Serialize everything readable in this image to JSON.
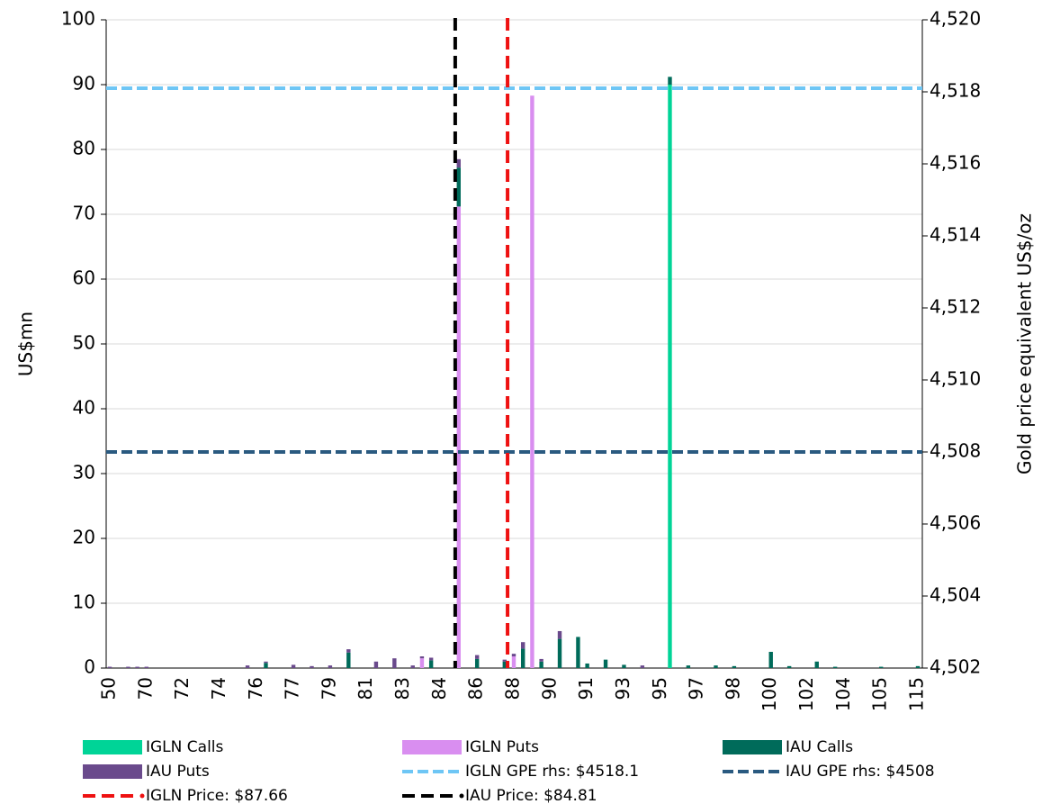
{
  "chart_data": {
    "type": "bar",
    "ylabel": "US$mn",
    "y2label": "Gold price equivalent US$/oz",
    "ylim": [
      0,
      100
    ],
    "yticks": [
      0,
      10,
      20,
      30,
      40,
      50,
      60,
      70,
      80,
      90,
      100
    ],
    "y2lim": [
      4502,
      4520
    ],
    "y2ticks": [
      {
        "value": 4502,
        "label": "4,502"
      },
      {
        "value": 4504,
        "label": "4,504"
      },
      {
        "value": 4506,
        "label": "4,506"
      },
      {
        "value": 4508,
        "label": "4,508"
      },
      {
        "value": 4510,
        "label": "4,510"
      },
      {
        "value": 4512,
        "label": "4,512"
      },
      {
        "value": 4514,
        "label": "4,514"
      },
      {
        "value": 4516,
        "label": "4,516"
      },
      {
        "value": 4518,
        "label": "4,518"
      },
      {
        "value": 4520,
        "label": "4,520"
      }
    ],
    "grid": true,
    "stacked": true,
    "categories": [
      50,
      null,
      null,
      null,
      70,
      null,
      null,
      null,
      72,
      null,
      null,
      null,
      74,
      null,
      null,
      null,
      76,
      null,
      null,
      null,
      77,
      null,
      null,
      null,
      79,
      null,
      null,
      null,
      81,
      null,
      null,
      null,
      83,
      null,
      null,
      null,
      84,
      null,
      null,
      null,
      86,
      null,
      null,
      null,
      88,
      null,
      null,
      null,
      90,
      null,
      null,
      null,
      91,
      null,
      null,
      null,
      93,
      null,
      null,
      null,
      95,
      null,
      null,
      null,
      97,
      null,
      null,
      null,
      98,
      null,
      null,
      null,
      100,
      null,
      null,
      null,
      102,
      null,
      null,
      null,
      104,
      null,
      null,
      null,
      105,
      null,
      null,
      null,
      115
    ],
    "series": [
      {
        "name": "IGLN Calls",
        "color": "#00d497",
        "values": [
          0,
          0,
          0,
          0,
          0,
          0,
          0,
          0,
          0,
          0,
          0,
          0,
          0,
          0,
          0,
          0,
          0,
          0,
          0,
          0,
          0,
          0,
          0,
          0,
          0,
          0,
          0,
          0,
          0,
          0,
          0,
          0,
          0,
          0,
          0,
          0,
          0,
          0,
          0,
          0,
          0,
          0,
          0,
          0,
          0,
          0,
          0,
          0,
          0,
          0,
          0,
          0,
          0,
          0,
          0,
          0,
          0,
          0,
          0,
          0,
          0,
          90,
          0,
          0,
          0,
          0,
          0,
          0,
          0,
          0,
          0,
          0,
          0,
          0,
          0,
          0,
          0,
          0,
          0,
          0,
          0,
          0,
          0,
          0,
          0,
          0,
          0,
          0,
          0
        ]
      },
      {
        "name": "IGLN Puts",
        "color": "#d98ef0",
        "values": [
          0,
          0,
          0,
          0,
          0,
          0,
          0,
          0,
          0,
          0,
          0,
          0,
          0,
          0,
          0,
          0,
          0,
          0,
          0,
          0,
          0,
          0,
          0,
          0,
          0,
          0,
          0,
          0,
          0,
          0,
          0,
          0,
          0,
          0,
          1.5,
          0,
          0,
          0,
          71.2,
          0,
          0,
          0,
          0,
          0,
          1.8,
          0,
          88.3,
          0,
          0,
          0,
          0,
          0,
          0,
          0,
          0,
          0,
          0,
          0,
          0,
          0,
          0,
          0,
          0,
          0,
          0,
          0,
          0,
          0,
          0,
          0,
          0,
          0,
          0,
          0,
          0,
          0,
          0,
          0,
          0,
          0,
          0,
          0,
          0,
          0,
          0,
          0,
          0,
          0,
          0
        ]
      },
      {
        "name": "IAU Calls",
        "color": "#006b5a",
        "values": [
          0,
          0,
          0,
          0,
          0,
          0,
          0,
          0,
          0,
          0,
          0,
          0,
          0,
          0,
          0,
          0,
          0,
          0.8,
          0,
          0,
          0,
          0,
          0,
          0,
          0,
          0,
          2.4,
          0,
          0,
          0,
          0,
          0,
          0,
          0,
          0,
          1.2,
          0,
          0,
          6.0,
          0,
          1.4,
          0,
          0,
          1.0,
          0,
          3.0,
          0,
          1.0,
          0,
          4.5,
          0,
          4.8,
          0.7,
          0,
          1.3,
          0,
          0.5,
          0,
          0,
          0,
          0,
          1.2,
          0,
          0.4,
          0,
          0,
          0.4,
          0,
          0.3,
          0,
          0,
          0,
          2.5,
          0,
          0.3,
          0,
          0,
          1.0,
          0,
          0.2,
          0,
          0,
          0,
          0,
          0.2,
          0,
          0,
          0,
          0.3
        ]
      },
      {
        "name": "IAU Puts",
        "color": "#6a4a8c",
        "values": [
          0.2,
          0,
          0.2,
          0.2,
          0.2,
          0,
          0,
          0,
          0,
          0,
          0,
          0,
          0,
          0,
          0,
          0.4,
          0,
          0.2,
          0,
          0,
          0.5,
          0,
          0.3,
          0,
          0.4,
          0,
          0.5,
          0,
          0,
          1.0,
          0,
          1.5,
          0,
          0.4,
          0.3,
          0.4,
          0,
          0,
          1.3,
          0,
          0.6,
          0,
          0,
          0.3,
          0.4,
          1.0,
          0,
          0.4,
          0,
          1.2,
          0,
          0,
          0,
          0,
          0,
          0,
          0,
          0,
          0.4,
          0,
          0,
          0,
          0,
          0,
          0,
          0,
          0,
          0,
          0,
          0,
          0,
          0,
          0,
          0,
          0,
          0,
          0,
          0,
          0,
          0,
          0,
          0,
          0,
          0,
          0,
          0,
          0,
          0,
          0
        ]
      }
    ],
    "hlines": [
      {
        "name": "IGLN GPE rhs: $4518.1",
        "color": "#6ec6f5",
        "axis": "y2",
        "value": 4518.1
      },
      {
        "name": "IAU GPE rhs: $4508",
        "color": "#2a5a80",
        "axis": "y2",
        "value": 4508
      }
    ],
    "vlines": [
      {
        "name": "IGLN Price: $87.66",
        "color": "#ee1111",
        "x": 87.66
      },
      {
        "name": "IAU Price: $84.81",
        "color": "#000000",
        "x": 84.81
      }
    ]
  }
}
